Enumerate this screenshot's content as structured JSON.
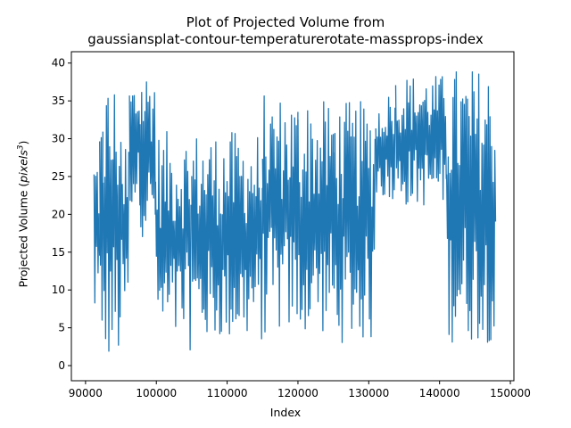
{
  "chart_data": {
    "type": "line",
    "title_line1": "Plot of Projected Volume from",
    "title_line2": "gaussiansplat-contour-temperaturerotate-massprops-index",
    "xlabel": "Index",
    "ylabel_prefix": "Projected Volume (",
    "ylabel_unit": "pixels",
    "ylabel_exp": "3",
    "ylabel_suffix": ")",
    "xlim": [
      88000,
      150500
    ],
    "ylim": [
      -2,
      41.5
    ],
    "xticks": [
      90000,
      100000,
      110000,
      120000,
      130000,
      140000,
      150000
    ],
    "yticks": [
      0,
      5,
      10,
      15,
      20,
      25,
      30,
      35,
      40
    ],
    "grid": false,
    "legend": "none",
    "color": "#1f77b4",
    "segments": [
      {
        "x0": 91200,
        "x1": 92000,
        "low": 5,
        "high": 29
      },
      {
        "x0": 92000,
        "x1": 92500,
        "low": 1,
        "high": 34
      },
      {
        "x0": 92500,
        "x1": 95200,
        "low": 0,
        "high": 38
      },
      {
        "x0": 95200,
        "x1": 96200,
        "low": 5,
        "high": 30
      },
      {
        "x0": 96200,
        "x1": 97700,
        "low": 21,
        "high": 38
      },
      {
        "x0": 97700,
        "x1": 99900,
        "low": 17,
        "high": 39.5
      },
      {
        "x0": 99900,
        "x1": 105000,
        "low": 2,
        "high": 31
      },
      {
        "x0": 105000,
        "x1": 115000,
        "low": 3,
        "high": 31
      },
      {
        "x0": 115000,
        "x1": 120000,
        "low": 4,
        "high": 36
      },
      {
        "x0": 120000,
        "x1": 125000,
        "low": 4,
        "high": 35
      },
      {
        "x0": 125000,
        "x1": 131000,
        "low": 3,
        "high": 35
      },
      {
        "x0": 131000,
        "x1": 133800,
        "low": 22,
        "high": 36
      },
      {
        "x0": 133800,
        "x1": 141000,
        "low": 21,
        "high": 38.5
      },
      {
        "x0": 141000,
        "x1": 148000,
        "low": 3,
        "high": 39.5
      }
    ]
  }
}
